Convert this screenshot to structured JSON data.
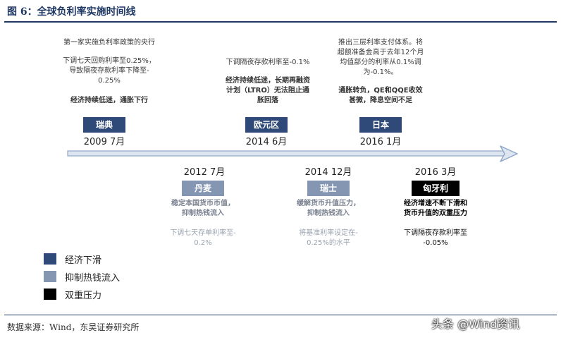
{
  "header": {
    "title": "图 6：全球负利率实施时间线"
  },
  "footer": {
    "source": "数据来源：Wind，东吴证券研究所",
    "watermark": "头条 @Wind资讯"
  },
  "legend": [
    {
      "label": "经济下滑",
      "color": "#2f4a78"
    },
    {
      "label": "抑制热钱流入",
      "color": "#8496b2"
    },
    {
      "label": "双重压力",
      "color": "#000000"
    }
  ],
  "events": {
    "sweden": {
      "country": "瑞典",
      "date": "2009 7月",
      "line1": "第一家实施负利率政策的央行",
      "line2": "下调七天回购利率至0.25%，",
      "line3": "导致隔夜存款利率下降至-",
      "line4": "0.25%",
      "reason": "经济持续低迷，通胀下行"
    },
    "eurozone": {
      "country": "欧元区",
      "date": "2014 6月",
      "line1": "下调隔夜存款利率至-0.1%",
      "reason1": "经济持续低迷，长期再融资",
      "reason2": "计划（LTRO）无法阻止通",
      "reason3": "胀回落"
    },
    "japan": {
      "country": "日本",
      "date": "2016 1月",
      "line1": "推出三层利率支付体系。将",
      "line2": "超额准备金高于去年12个月",
      "line3": "均值部分的利率从0.1%调",
      "line4": "为-0.1%。",
      "reason1": "通胀转负，QE和QQE收效",
      "reason2": "甚微，降息空间不足"
    },
    "denmark": {
      "country": "丹麦",
      "date": "2012 7月",
      "reason1": "稳定本国货币币值，",
      "reason2": "抑制热钱流入",
      "line1": "下调七天存单利率至-",
      "line2": "0.2%"
    },
    "switzerland": {
      "country": "瑞士",
      "date": "2014 12月",
      "reason1": "缓解货币升值压力，",
      "reason2": "抑制热钱流入",
      "line1": "将基准利率设定在-",
      "line2": "0.25%的水平"
    },
    "hungary": {
      "country": "匈牙利",
      "date": "2016 3月",
      "reason1": "经济增速不断下滑和",
      "reason2": "货币升值的双重压力",
      "line1": "下调隔夜存款利率至",
      "line2": "-0.05%"
    }
  }
}
